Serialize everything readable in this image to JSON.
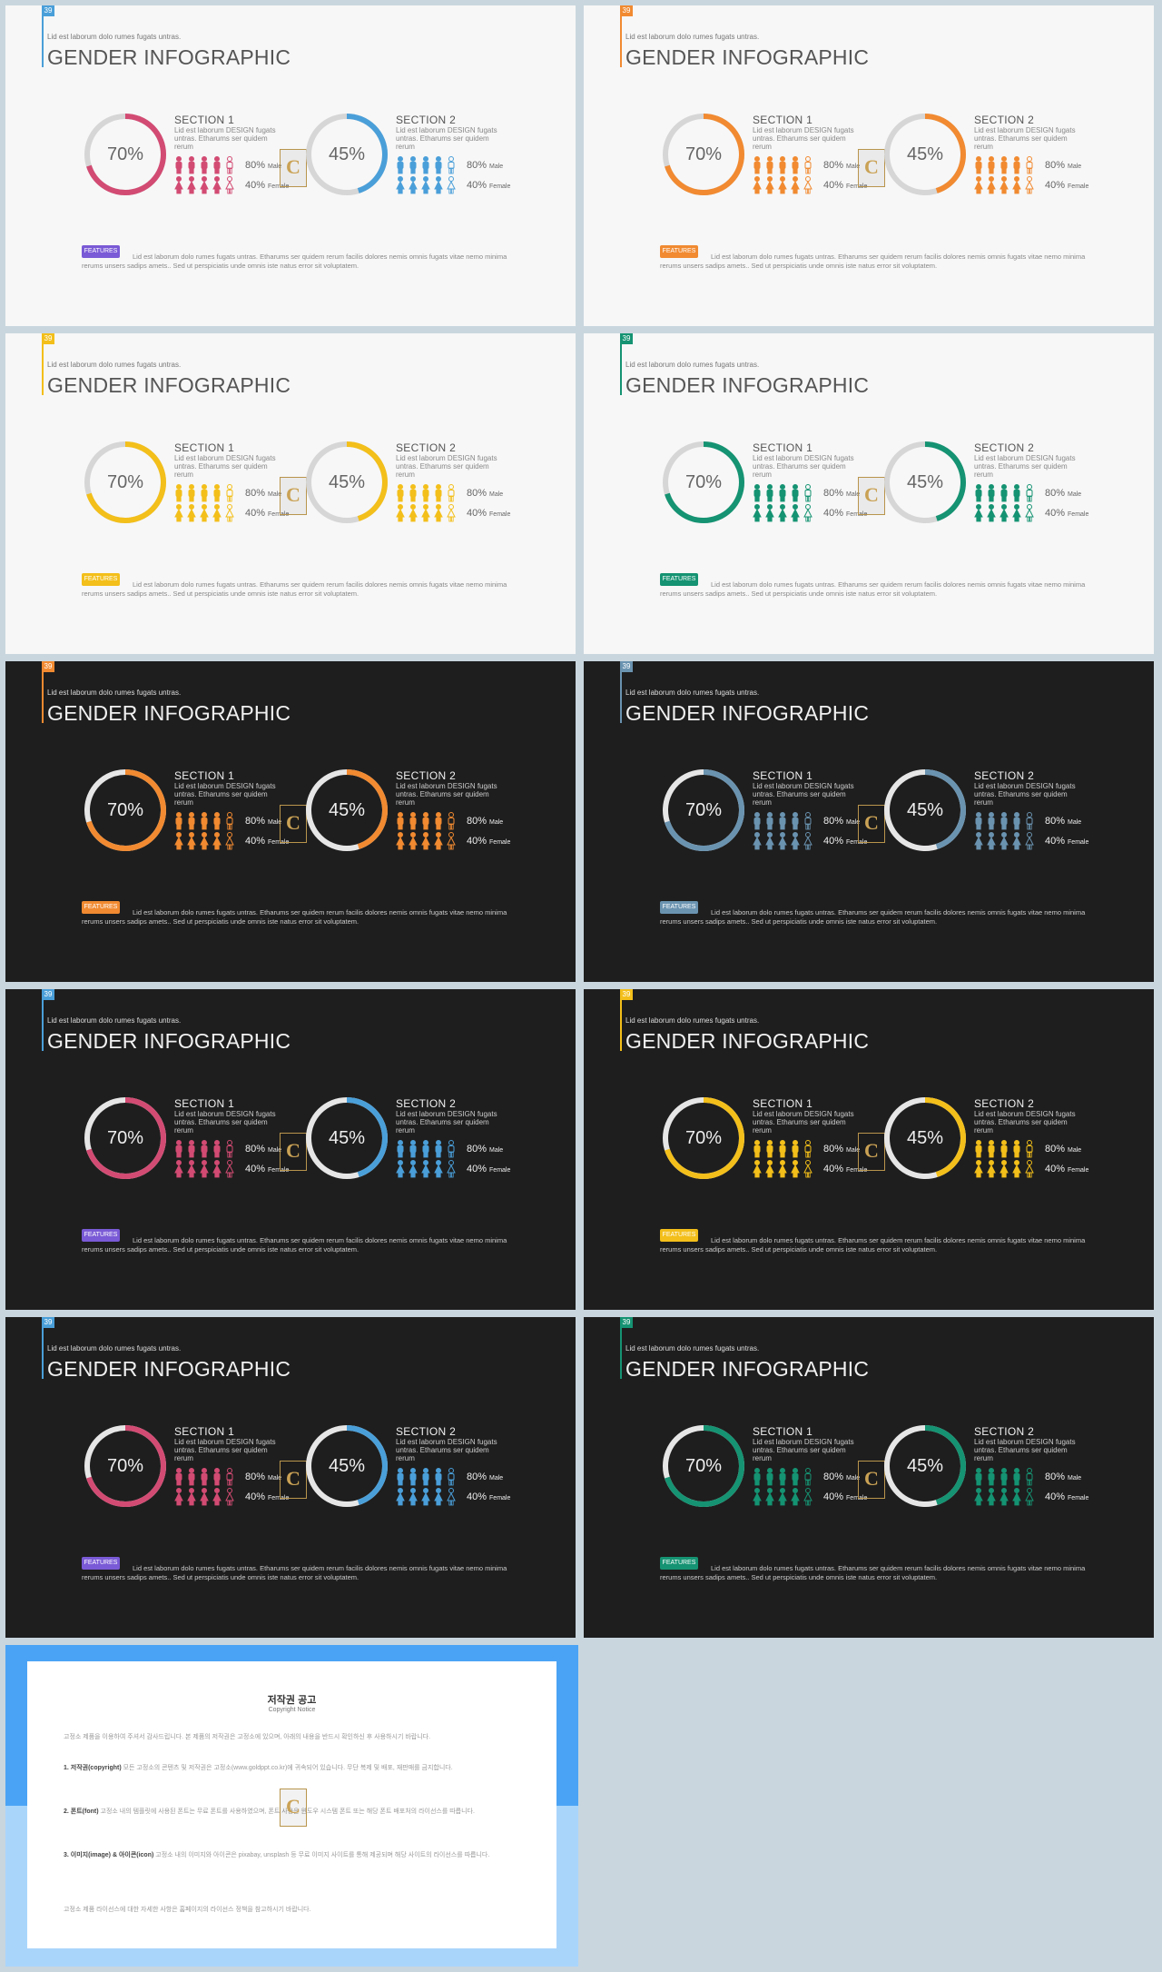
{
  "slide_text": {
    "page_number": "39",
    "subtitle": "Lid est laborum dolo rumes fugats untras.",
    "title": "GENDER INFOGRAPHIC",
    "sections": [
      {
        "title": "SECTION 1",
        "desc": "Lid est laborum DESIGN fugats untras. Etharums ser quidem rerum",
        "percent": "70%",
        "percent_value": 0.7
      },
      {
        "title": "SECTION 2",
        "desc": "Lid est laborum DESIGN fugats untras. Etharums ser quidem rerum",
        "percent": "45%",
        "percent_value": 0.45
      }
    ],
    "stats": [
      {
        "value": "80%",
        "label": "Male"
      },
      {
        "value": "40%",
        "label": "Female"
      }
    ],
    "badge": "FEATURES",
    "body": "Lid est laborum dolo rumes fugats untras. Etharums ser quidem rerum facilis dolores nemis omnis fugats vitae nemo minima rerums unsers sadips amets.. Sed ut perspiciatis unde omnis iste natus error sit voluptatem.",
    "logo_letter": "C"
  },
  "slides": [
    {
      "theme": "light",
      "accent": "#d24b73",
      "accent2": "#4a9fd9",
      "badge_color": "#7a5ad6",
      "flag_color": "#4a9fd9"
    },
    {
      "theme": "light",
      "accent": "#f18a31",
      "accent2": "#f18a31",
      "badge_color": "#f18a31",
      "flag_color": "#f18a31"
    },
    {
      "theme": "light",
      "accent": "#f3bf1a",
      "accent2": "#f3bf1a",
      "badge_color": "#f3bf1a",
      "flag_color": "#f3bf1a"
    },
    {
      "theme": "light",
      "accent": "#159372",
      "accent2": "#159372",
      "badge_color": "#159372",
      "flag_color": "#159372"
    },
    {
      "theme": "dark",
      "accent": "#f18a31",
      "accent2": "#f18a31",
      "badge_color": "#f18a31",
      "flag_color": "#f18a31"
    },
    {
      "theme": "dark",
      "accent": "#6a93b0",
      "accent2": "#6a93b0",
      "badge_color": "#6a93b0",
      "flag_color": "#6a93b0"
    },
    {
      "theme": "dark",
      "accent": "#d24b73",
      "accent2": "#4a9fd9",
      "badge_color": "#7a5ad6",
      "flag_color": "#4a9fd9"
    },
    {
      "theme": "dark",
      "accent": "#f3bf1a",
      "accent2": "#f3bf1a",
      "badge_color": "#f3bf1a",
      "flag_color": "#f3bf1a"
    },
    {
      "theme": "dark",
      "accent": "#d24b73",
      "accent2": "#4a9fd9",
      "badge_color": "#7a5ad6",
      "flag_color": "#4a9fd9"
    },
    {
      "theme": "dark",
      "accent": "#159372",
      "accent2": "#159372",
      "badge_color": "#159372",
      "flag_color": "#159372"
    }
  ],
  "copyright": {
    "title": "저작권 공고",
    "subtitle": "Copyright Notice",
    "intro": "고정소 제품을 이용하여 주셔서 감사드립니다. 본 제품의 저작권은 고정소에 있으며, 아래의 내용을 반드시 확인하신 후 사용하시기 바랍니다.",
    "items": [
      {
        "heading": "1. 저작권(copyright)",
        "text": "모든 고정소의 콘텐츠 및 저작권은 고정소(www.goldppt.co.kr)에 귀속되어 있습니다. 무단 복제 및 배포, 재판매를 금지합니다."
      },
      {
        "heading": "2. 폰트(font)",
        "text": "고정소 내의 템플릿에 사용된 폰트는 무료 폰트를 사용하였으며, 폰트 사용은 윈도우 시스템 폰트 또는 해당 폰트 배포처의 라이선스를 따릅니다."
      },
      {
        "heading": "3. 이미지(image) & 아이콘(icon)",
        "text": "고정소 내의 이미지와 아이콘은 pixabay, unsplash 등 무료 이미지 사이트를 통해 제공되며 해당 사이트의 라이선스를 따릅니다."
      }
    ],
    "footer": "고정소 제품 라이선스에 대한 자세한 사항은 홈페이지의 라이선스 정책을 참고하시기 바랍니다."
  }
}
